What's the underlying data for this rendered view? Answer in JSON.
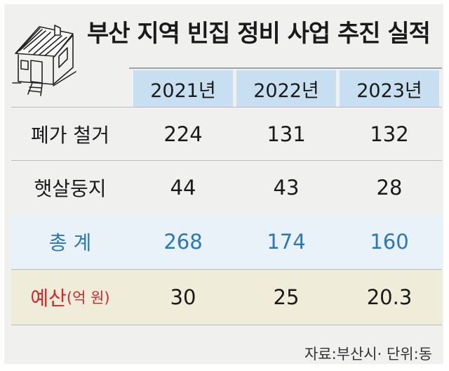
{
  "title": "부산 지역 빈집 정비 사업 추진 실적",
  "columns": [
    "2021년",
    "2022년",
    "2023년"
  ],
  "rows": [
    {
      "label": "폐가 철거",
      "values": [
        "224",
        "131",
        "132"
      ]
    },
    {
      "label": "햇살둥지",
      "values": [
        "44",
        "43",
        "28"
      ]
    },
    {
      "label": "총 계",
      "values": [
        "268",
        "174",
        "160"
      ]
    },
    {
      "label": "예산",
      "label_unit": "(억 원)",
      "values": [
        "30",
        "25",
        "20.3"
      ]
    }
  ],
  "source": "자료:부산시· 단위:동",
  "colors": {
    "header_bg": "#c7dff0",
    "total_bg": "#e9f2f8",
    "total_text": "#2a78b8",
    "budget_bg": "#efecd9",
    "budget_label": "#d0282d"
  },
  "icons": {
    "illustration": "house-sketch-icon"
  }
}
